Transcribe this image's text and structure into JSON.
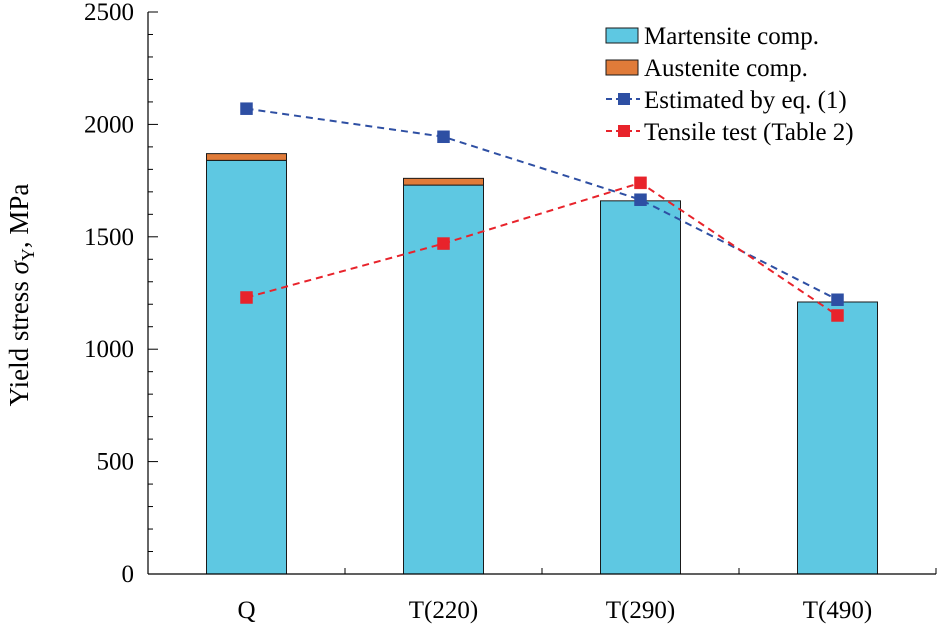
{
  "chart_data": {
    "type": "bar",
    "stacked": true,
    "categories": [
      "Q",
      "T(220)",
      "T(290)",
      "T(490)"
    ],
    "series": [
      {
        "name": "Martensite comp.",
        "kind": "bar",
        "color": "#5ec8e2",
        "values": [
          1840,
          1730,
          1660,
          1210
        ]
      },
      {
        "name": "Austenite comp.",
        "kind": "bar",
        "color": "#e07b39",
        "values": [
          30,
          30,
          0,
          0
        ]
      },
      {
        "name": "Estimated by eq. (1)",
        "kind": "line",
        "style": "dashed",
        "marker": "square",
        "color": "#2e4fa3",
        "values": [
          2070,
          1945,
          1665,
          1220
        ]
      },
      {
        "name": "Tensile test (Table 2)",
        "kind": "line",
        "style": "dashed",
        "marker": "square",
        "color": "#e8232b",
        "values": [
          1230,
          1470,
          1740,
          1150
        ]
      }
    ],
    "ylabel_main": "Yield stress ",
    "ylabel_symbol": "σ",
    "ylabel_subscript": "Y",
    "ylabel_unit": ", MPa",
    "xlabel": "",
    "ylim": [
      0,
      2500
    ],
    "yticks": [
      "0",
      "500",
      "1000",
      "1500",
      "2000",
      "2500"
    ],
    "legend_position": "top-right",
    "grid": false
  }
}
